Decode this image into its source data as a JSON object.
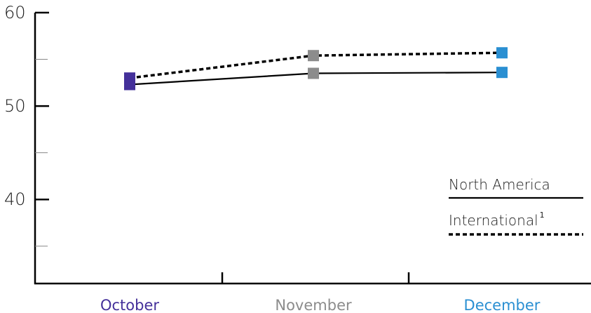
{
  "chart_data": {
    "type": "line",
    "categories": [
      "October",
      "November",
      "December"
    ],
    "category_colors": [
      "#44309a",
      "#8c8c8c",
      "#2a8fd2"
    ],
    "series": [
      {
        "name": "North America",
        "values": [
          52.3,
          53.5,
          53.6
        ],
        "line_style": "solid",
        "color": "#000000"
      },
      {
        "name": "International",
        "name_superscript": "1",
        "values": [
          53.0,
          55.4,
          55.7
        ],
        "line_style": "dashed",
        "color": "#000000"
      }
    ],
    "ylim": [
      31,
      60
    ],
    "y_major_ticks": [
      40,
      50,
      60
    ],
    "y_minor_ticks": [
      35,
      45,
      55
    ],
    "grid": false,
    "legend_position": "right"
  }
}
